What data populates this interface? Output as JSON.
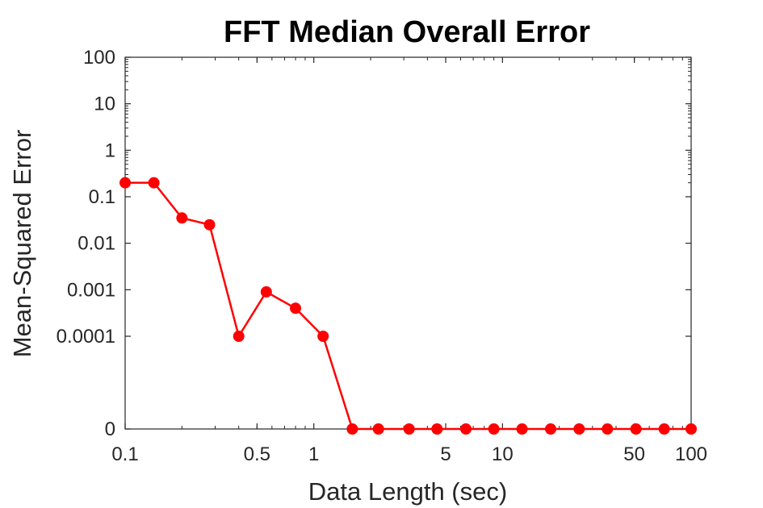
{
  "chart_data": {
    "type": "line",
    "title": "FFT Median Overall Error",
    "xlabel": "Data Length (sec)",
    "ylabel": "Mean-Squared Error",
    "x_scale": "log",
    "y_scale": "log",
    "xlim": [
      0.1,
      100
    ],
    "ylim": [
      1e-05,
      100
    ],
    "x_ticks": [
      {
        "value": 0.1,
        "label": "0.1"
      },
      {
        "value": 0.5,
        "label": "0.5"
      },
      {
        "value": 1,
        "label": "1"
      },
      {
        "value": 5,
        "label": "5"
      },
      {
        "value": 10,
        "label": "10"
      },
      {
        "value": 50,
        "label": "50"
      },
      {
        "value": 100,
        "label": "100"
      }
    ],
    "y_ticks": [
      {
        "value": 1e-06,
        "label": "0"
      },
      {
        "value": 0.0001,
        "label": "0.0001"
      },
      {
        "value": 0.001,
        "label": "0.001"
      },
      {
        "value": 0.01,
        "label": "0.01"
      },
      {
        "value": 0.1,
        "label": "0.1"
      },
      {
        "value": 1,
        "label": "1"
      },
      {
        "value": 10,
        "label": "10"
      },
      {
        "value": 100,
        "label": "100"
      }
    ],
    "grid": false,
    "series": [
      {
        "color": "#ff0000",
        "marker": "circle",
        "x": [
          0.1,
          0.142,
          0.2,
          0.28,
          0.4,
          0.56,
          0.8,
          1.12,
          1.6,
          2.2,
          3.2,
          4.5,
          6.4,
          9,
          12.7,
          18,
          25.5,
          36,
          51,
          72,
          100
        ],
        "y": [
          0.2,
          0.2,
          0.035,
          0.025,
          0.0001,
          0.0009,
          0.0004,
          0.0001,
          0,
          0,
          0,
          0,
          0,
          0,
          0,
          0,
          0,
          0,
          0,
          0,
          0
        ]
      }
    ]
  }
}
